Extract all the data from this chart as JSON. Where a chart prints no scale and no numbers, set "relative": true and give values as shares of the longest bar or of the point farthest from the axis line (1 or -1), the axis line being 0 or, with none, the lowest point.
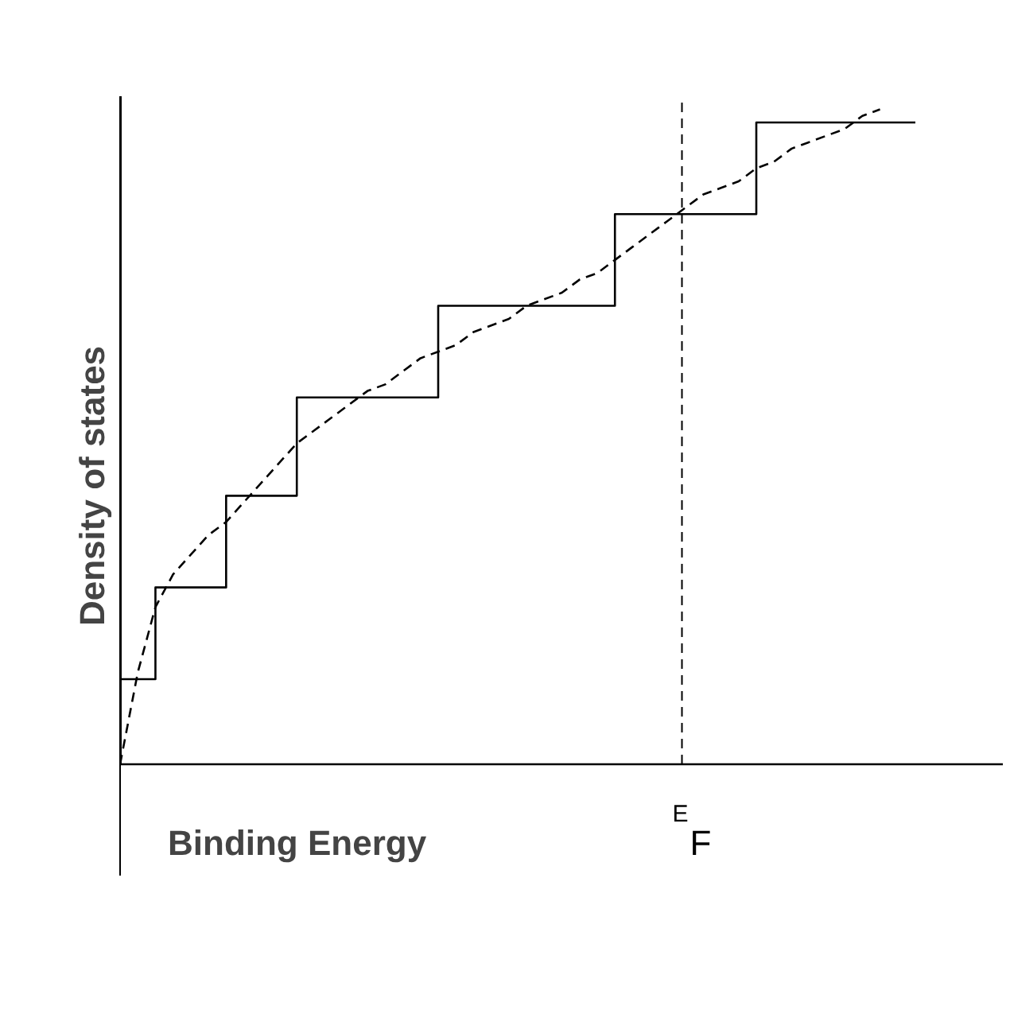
{
  "chart_data": {
    "type": "step",
    "relative": true,
    "xlabel": "Binding Energy",
    "ylabel": "Density of states",
    "categories": [
      null,
      null,
      null,
      null,
      null,
      null,
      null,
      null,
      null,
      null,
      null,
      null,
      null,
      null,
      null,
      null,
      null,
      null,
      null,
      null,
      null,
      null,
      null,
      null,
      null,
      null,
      null,
      null,
      null,
      null,
      null,
      null,
      null,
      null,
      null,
      null,
      null,
      null,
      null,
      null,
      null,
      null,
      null,
      null,
      null,
      null
    ],
    "series": [
      {
        "color": "#000000",
        "line_style": "solid",
        "values": [
          0.13,
          0.13,
          0.27,
          0.27,
          0.27,
          0.27,
          0.41,
          0.41,
          0.41,
          0.41,
          0.56,
          0.56,
          0.56,
          0.56,
          0.56,
          0.56,
          0.56,
          0.56,
          0.7,
          0.7,
          0.7,
          0.7,
          0.7,
          0.7,
          0.7,
          0.7,
          0.7,
          0.7,
          0.84,
          0.84,
          0.84,
          0.84,
          0.84,
          0.84,
          0.84,
          0.84,
          0.98,
          0.98,
          0.98,
          0.98,
          0.98,
          0.98,
          0.98,
          0.98,
          0.98,
          0.98
        ]
      },
      {
        "type": "line",
        "color": "#000000",
        "line_style": "dashed",
        "values": [
          0.0,
          0.14,
          0.24,
          0.29,
          0.32,
          0.35,
          0.37,
          0.4,
          0.43,
          0.46,
          0.49,
          0.51,
          0.53,
          0.55,
          0.57,
          0.58,
          0.6,
          0.62,
          0.63,
          0.64,
          0.66,
          0.67,
          0.68,
          0.7,
          0.71,
          0.72,
          0.74,
          0.75,
          0.77,
          0.79,
          0.81,
          0.83,
          0.85,
          0.87,
          0.88,
          0.89,
          0.91,
          0.92,
          0.94,
          0.95,
          0.96,
          0.97,
          0.99,
          1.0,
          null,
          null
        ]
      }
    ],
    "annotations": [
      "$^{E}$F"
    ]
  }
}
